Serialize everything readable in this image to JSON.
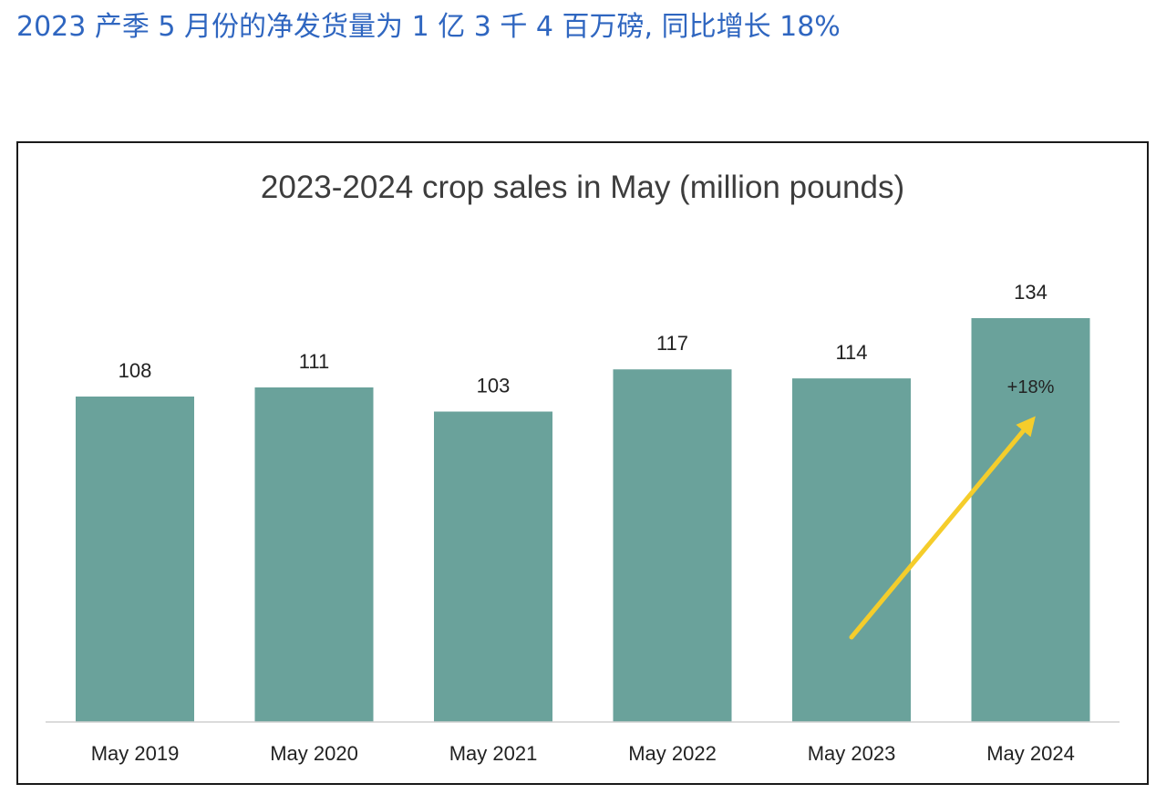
{
  "headline": "2023 产季 5 月份的净发货量为 1 亿 3 千 4 百万磅, 同比增长 18%",
  "colors": {
    "headline": "#2f66c0",
    "bar": "#6aa29b",
    "arrow": "#f5cd2b",
    "frame": "#1a1a1a"
  },
  "chart_data": {
    "type": "bar",
    "title": "2023-2024 crop sales in May (million pounds)",
    "categories": [
      "May 2019",
      "May 2020",
      "May 2021",
      "May 2022",
      "May 2023",
      "May 2024"
    ],
    "values": [
      108,
      111,
      103,
      117,
      114,
      134
    ],
    "ylim": [
      0,
      134
    ],
    "grid": false,
    "legend": "none",
    "annotation": {
      "label": "+18%",
      "arrow_from_category": "May 2023",
      "arrow_to_category": "May 2024"
    }
  }
}
